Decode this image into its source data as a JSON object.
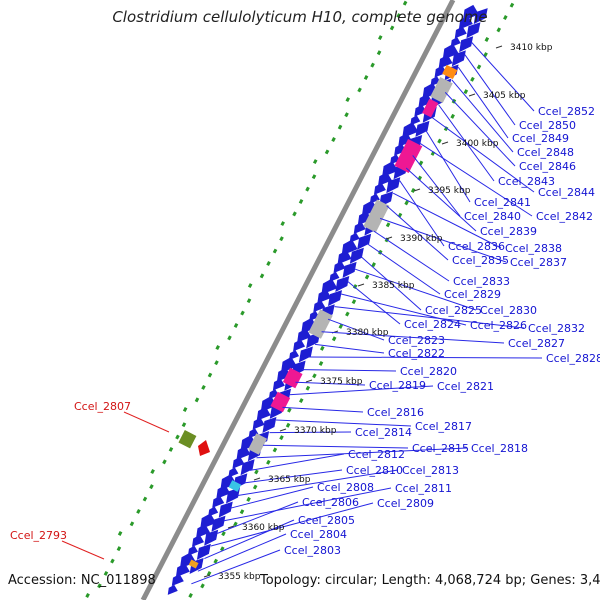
{
  "title": "Clostridium cellulolyticum H10, complete genome",
  "accession": "Accession: NC_011898",
  "topology": "Topology: circular; Length: 4,068,724 bp; Genes: 3,477",
  "colors": {
    "backbone": "#8c8c8c",
    "cds": "#1e1ed2",
    "gc_dots": "#2a9a2a",
    "label_line": "#2828e6",
    "highlight_line": "#e02020",
    "magenta": "#ee1893",
    "gray_feature": "#b4b4b4",
    "orange": "#ff8c14"
  },
  "kbp_ticks": [
    "3410 kbp",
    "3405 kbp",
    "3400 kbp",
    "3395 kbp",
    "3390 kbp",
    "3385 kbp",
    "3380 kbp",
    "3375 kbp",
    "3370 kbp",
    "3365 kbp",
    "3360 kbp",
    "3355 kbp"
  ],
  "highlight_genes": [
    "Ccel_2807",
    "Ccel_2793"
  ],
  "gene_labels": [
    "Ccel_2852",
    "Ccel_2850",
    "Ccel_2849",
    "Ccel_2848",
    "Ccel_2846",
    "Ccel_2843",
    "Ccel_2844",
    "Ccel_2841",
    "Ccel_2842",
    "Ccel_2840",
    "Ccel_2839",
    "Ccel_2836",
    "Ccel_2838",
    "Ccel_2835",
    "Ccel_2837",
    "Ccel_2833",
    "Ccel_2829",
    "Ccel_2825",
    "Ccel_2830",
    "Ccel_2824",
    "Ccel_2826",
    "Ccel_2832",
    "Ccel_2823",
    "Ccel_2827",
    "Ccel_2822",
    "Ccel_2828",
    "Ccel_2820",
    "Ccel_2819",
    "Ccel_2821",
    "Ccel_2816",
    "Ccel_2817",
    "Ccel_2814",
    "Ccel_2815",
    "Ccel_2818",
    "Ccel_2812",
    "Ccel_2810",
    "Ccel_2813",
    "Ccel_2808",
    "Ccel_2811",
    "Ccel_2806",
    "Ccel_2809",
    "Ccel_2805",
    "Ccel_2804",
    "Ccel_2803"
  ]
}
